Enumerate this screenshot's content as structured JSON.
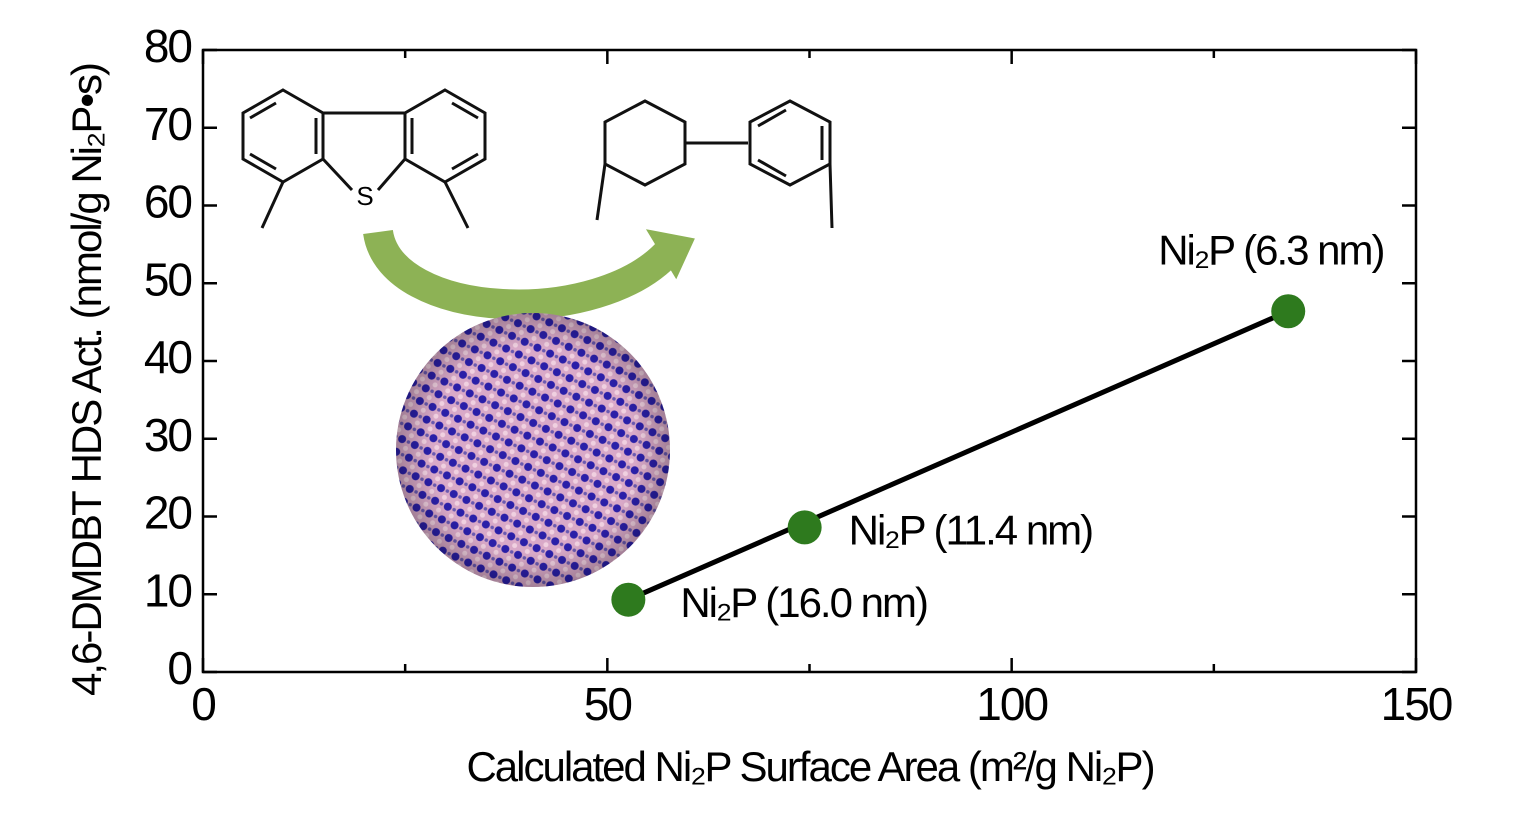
{
  "chart_data": {
    "type": "scatter",
    "xlabel": "Calculated Ni₂P Surface Area (m²/g Ni₂P)",
    "ylabel": "4,6-DMDBT HDS Act. (nmol/g Ni₂P•s)",
    "xlim": [
      0,
      150
    ],
    "ylim": [
      0,
      80
    ],
    "xticks": [
      0,
      50,
      100,
      150
    ],
    "xminorticks": [
      25,
      75,
      125
    ],
    "yticks": [
      0,
      10,
      20,
      30,
      40,
      50,
      60,
      70,
      80
    ],
    "series": [
      {
        "color": "#2e7a1e",
        "x": [
          52.6,
          74.4,
          134.2
        ],
        "values": [
          9.3,
          18.6,
          46.4
        ],
        "labels": [
          "Ni₂P (16.0 nm)",
          "Ni₂P (11.4 nm)",
          "Ni₂P (6.3 nm)"
        ]
      }
    ],
    "fit": {
      "color": "#000000",
      "x": [
        52.6,
        134.2
      ],
      "values": [
        9.3,
        46.4
      ]
    },
    "annotations": [
      "S"
    ]
  }
}
